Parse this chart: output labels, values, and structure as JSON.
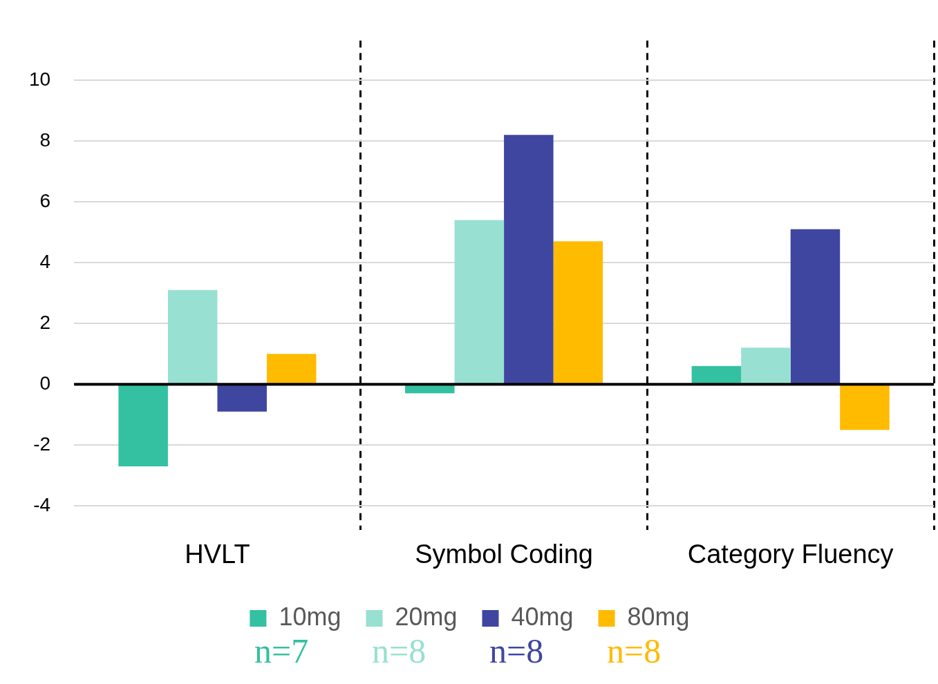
{
  "chart_data": {
    "type": "bar",
    "categories": [
      "HVLT",
      "Symbol Coding",
      "Category Fluency"
    ],
    "series": [
      {
        "name": "10mg",
        "color": "#33c1a1",
        "values": [
          -2.7,
          -0.3,
          0.6
        ]
      },
      {
        "name": "20mg",
        "color": "#98e0d2",
        "values": [
          3.1,
          5.4,
          1.2
        ]
      },
      {
        "name": "40mg",
        "color": "#3f46a0",
        "values": [
          -0.9,
          8.2,
          5.1
        ]
      },
      {
        "name": "80mg",
        "color": "#ffbb00",
        "values": [
          1.0,
          4.7,
          -1.5
        ]
      }
    ],
    "ylim": [
      -4.8,
      11.3
    ],
    "yticks": [
      -4,
      -2,
      0,
      2,
      4,
      6,
      8,
      10
    ],
    "ref_lines": [
      {
        "axis": "y",
        "value": 0,
        "color": "#000000"
      }
    ],
    "grid": true,
    "legend": "bottom",
    "annotations": [
      "n=7",
      "n=8",
      "n=8",
      "n=8"
    ]
  }
}
